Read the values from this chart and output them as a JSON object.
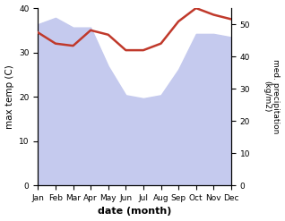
{
  "months": [
    "Jan",
    "Feb",
    "Mar",
    "Apr",
    "May",
    "Jun",
    "Jul",
    "Aug",
    "Sep",
    "Oct",
    "Nov",
    "Dec"
  ],
  "month_indices": [
    0,
    1,
    2,
    3,
    4,
    5,
    6,
    7,
    8,
    9,
    10,
    11
  ],
  "precipitation": [
    50,
    52,
    49,
    49,
    37,
    28,
    27,
    28,
    36,
    47,
    47,
    46
  ],
  "temperature": [
    34.5,
    32,
    31.5,
    35,
    34,
    30.5,
    30.5,
    32,
    37,
    40,
    38.5,
    37.5
  ],
  "temp_color": "#c0392b",
  "precip_fill_color": "#c5caee",
  "xlabel": "date (month)",
  "ylabel_left": "max temp (C)",
  "ylabel_right": "med. precipitation\n(kg/m2)",
  "ylim_left": [
    0,
    40
  ],
  "ylim_right": [
    0,
    55
  ],
  "yticks_left": [
    0,
    10,
    20,
    30,
    40
  ],
  "yticks_right": [
    0,
    10,
    20,
    30,
    40,
    50
  ],
  "bg_color": "#ffffff",
  "plot_bg_color": "#ffffff"
}
